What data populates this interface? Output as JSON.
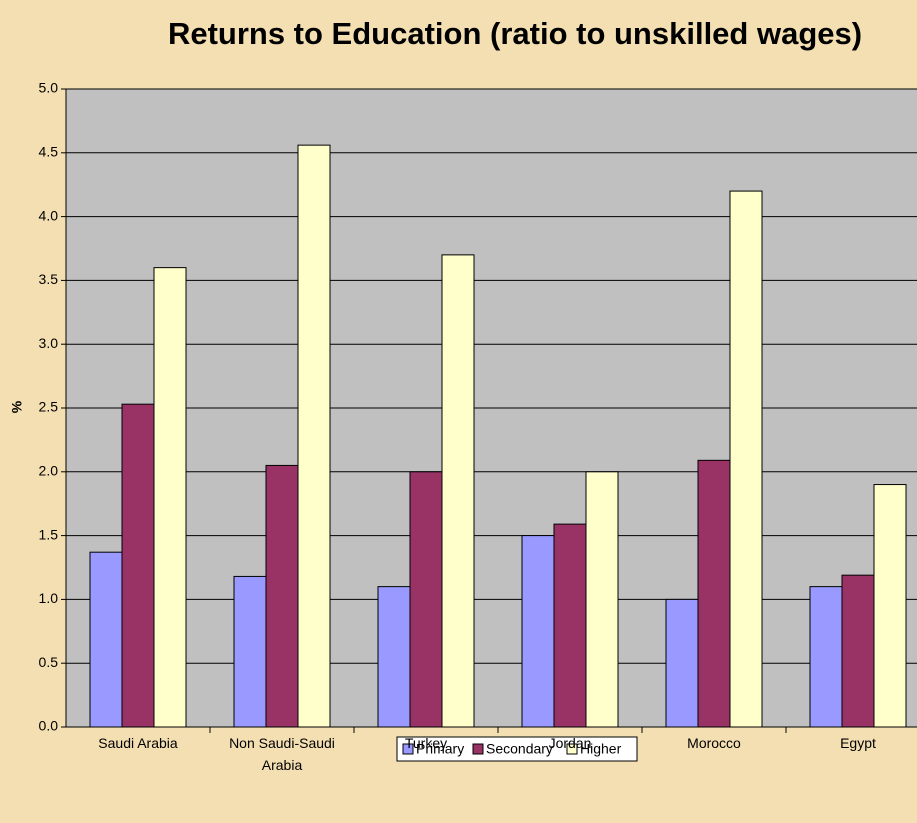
{
  "chart_data": {
    "type": "bar",
    "title": "Returns to Education (ratio to unskilled wages)",
    "ylabel": "%",
    "categories": [
      "Saudi Arabia",
      "Non Saudi-Saudi Arabia",
      "Turkey",
      "Jordan",
      "Morocco",
      "Egypt"
    ],
    "series": [
      {
        "name": "Primary",
        "color": "#9999ff",
        "values": [
          1.37,
          1.18,
          1.1,
          1.5,
          1.0,
          1.1
        ]
      },
      {
        "name": "Secondary",
        "color": "#993366",
        "values": [
          2.53,
          2.05,
          2.0,
          1.59,
          2.09,
          1.19
        ]
      },
      {
        "name": "Higher",
        "color": "#ffffcc",
        "values": [
          3.6,
          4.56,
          3.7,
          2.0,
          4.2,
          1.9
        ]
      }
    ],
    "ylim": [
      0,
      5
    ],
    "yticks": [
      {
        "value": 0,
        "label": "0.0"
      },
      0.5,
      {
        "value": 1,
        "label": "1.0"
      },
      1.5,
      {
        "value": 2,
        "label": "2.0"
      },
      2.5,
      {
        "value": 3,
        "label": "3.0"
      },
      3.5,
      {
        "value": 4,
        "label": "4.0"
      },
      4.5,
      {
        "value": 5,
        "label": "5.0"
      }
    ],
    "grid": true,
    "legend": "bottom"
  }
}
